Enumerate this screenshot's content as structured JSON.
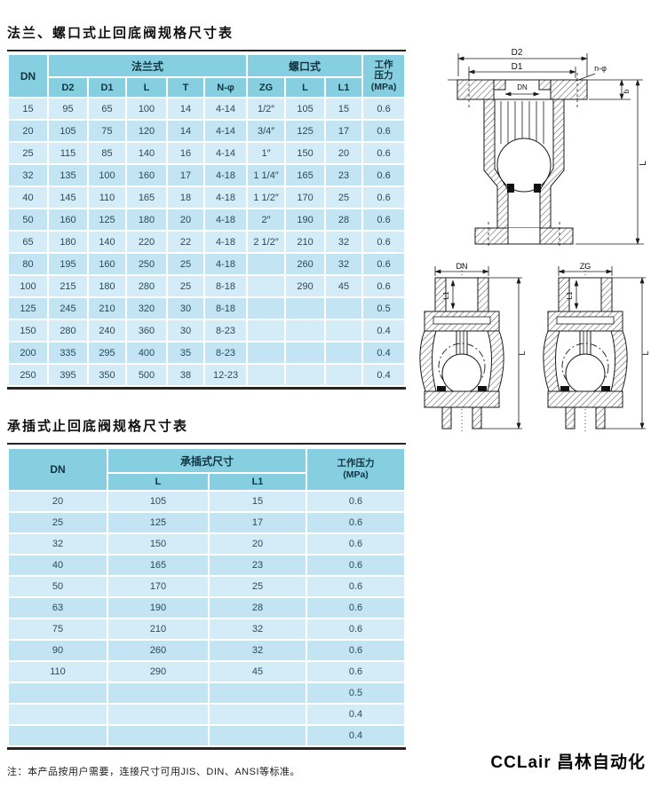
{
  "colors": {
    "header_bg": "#85cfe1",
    "row_light": "#d3ecf8",
    "row_dark": "#c2e4f3",
    "cell_text": "#2a4a5c",
    "border_dark": "#242424"
  },
  "table1": {
    "title": "法兰、螺口式止回底阀规格尺寸表",
    "header": {
      "dn": "DN",
      "flange_group": "法兰式",
      "thread_group": "螺口式",
      "pressure_lines": [
        "工作",
        "压力",
        "(MPa)"
      ],
      "sub": [
        "D2",
        "D1",
        "L",
        "T",
        "N-φ",
        "ZG",
        "L",
        "L1"
      ]
    },
    "rows": [
      [
        "15",
        "95",
        "65",
        "100",
        "14",
        "4-14",
        "1/2″",
        "105",
        "15",
        "0.6"
      ],
      [
        "20",
        "105",
        "75",
        "120",
        "14",
        "4-14",
        "3/4″",
        "125",
        "17",
        "0.6"
      ],
      [
        "25",
        "115",
        "85",
        "140",
        "16",
        "4-14",
        "1″",
        "150",
        "20",
        "0.6"
      ],
      [
        "32",
        "135",
        "100",
        "160",
        "17",
        "4-18",
        "1 1/4″",
        "165",
        "23",
        "0.6"
      ],
      [
        "40",
        "145",
        "110",
        "165",
        "18",
        "4-18",
        "1 1/2″",
        "170",
        "25",
        "0.6"
      ],
      [
        "50",
        "160",
        "125",
        "180",
        "20",
        "4-18",
        "2″",
        "190",
        "28",
        "0.6"
      ],
      [
        "65",
        "180",
        "140",
        "220",
        "22",
        "4-18",
        "2 1/2″",
        "210",
        "32",
        "0.6"
      ],
      [
        "80",
        "195",
        "160",
        "250",
        "25",
        "4-18",
        "",
        "260",
        "32",
        "0.6"
      ],
      [
        "100",
        "215",
        "180",
        "280",
        "25",
        "8-18",
        "",
        "290",
        "45",
        "0.6"
      ],
      [
        "125",
        "245",
        "210",
        "320",
        "30",
        "8-18",
        "",
        "",
        "",
        "0.5"
      ],
      [
        "150",
        "280",
        "240",
        "360",
        "30",
        "8-23",
        "",
        "",
        "",
        "0.4"
      ],
      [
        "200",
        "335",
        "295",
        "400",
        "35",
        "8-23",
        "",
        "",
        "",
        "0.4"
      ],
      [
        "250",
        "395",
        "350",
        "500",
        "38",
        "12-23",
        "",
        "",
        "",
        "0.4"
      ]
    ]
  },
  "table2": {
    "title": "承插式止回底阀规格尺寸表",
    "header": {
      "dn": "DN",
      "socket_group": "承插式尺寸",
      "pressure_lines": [
        "工作压力",
        "(MPa)"
      ],
      "sub": [
        "L",
        "L1"
      ]
    },
    "rows": [
      [
        "20",
        "105",
        "15",
        "0.6"
      ],
      [
        "25",
        "125",
        "17",
        "0.6"
      ],
      [
        "32",
        "150",
        "20",
        "0.6"
      ],
      [
        "40",
        "165",
        "23",
        "0.6"
      ],
      [
        "50",
        "170",
        "25",
        "0.6"
      ],
      [
        "63",
        "190",
        "28",
        "0.6"
      ],
      [
        "75",
        "210",
        "32",
        "0.6"
      ],
      [
        "90",
        "260",
        "32",
        "0.6"
      ],
      [
        "110",
        "290",
        "45",
        "0.6"
      ],
      [
        "",
        "",
        "",
        "0.5"
      ],
      [
        "",
        "",
        "",
        "0.4"
      ],
      [
        "",
        "",
        "",
        "0.4"
      ]
    ]
  },
  "note": "注：本产品按用户需要，连接尺寸可用JIS、DIN、ANSI等标准。",
  "logo": "CCLair 昌林自动化",
  "drawings": {
    "flange": {
      "d2": "D2",
      "d1": "D1",
      "dn": "DN",
      "n_phi": "n-φ",
      "b": "b",
      "l": "L"
    },
    "thread_dn": {
      "dn": "DN",
      "l1": "L1",
      "l": "L"
    },
    "thread_zg": {
      "zg": "ZG",
      "l1": "L1",
      "l": "L"
    }
  }
}
